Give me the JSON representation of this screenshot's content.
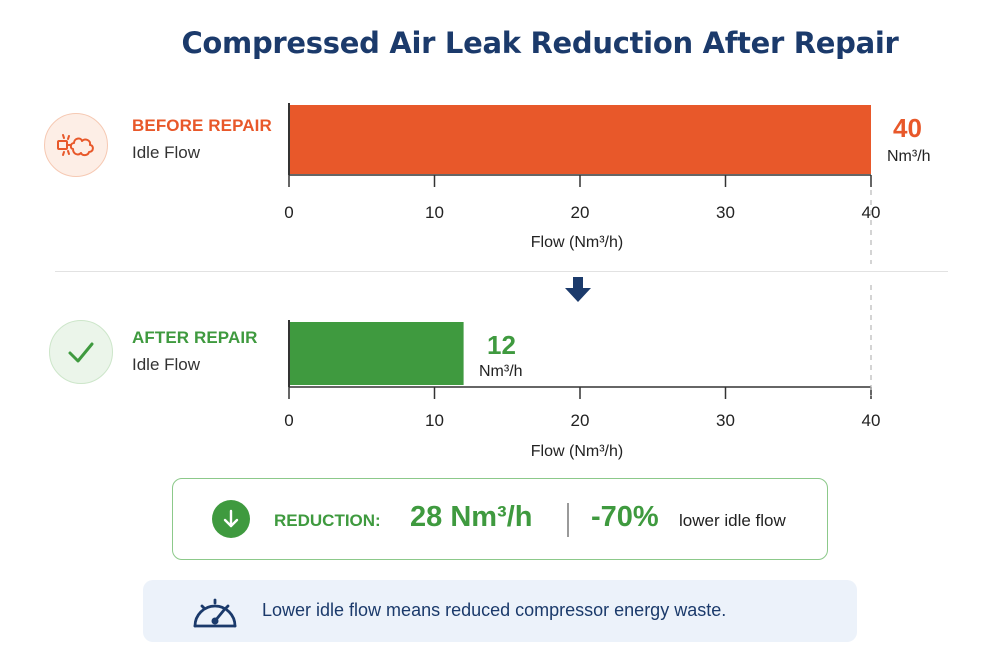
{
  "title": "Compressed Air Leak Reduction After Repair",
  "colors": {
    "before": "#e8582a",
    "after": "#3f9a3f",
    "navy": "#1b3a6b"
  },
  "chart_data": [
    {
      "type": "bar",
      "orientation": "horizontal",
      "series_label": "BEFORE REPAIR",
      "category": "Idle Flow",
      "value": 40,
      "value_label": "40",
      "unit": "Nm³/h",
      "xlabel": "Flow (Nm³/h)",
      "xlim": [
        0,
        40
      ],
      "ticks": [
        0,
        10,
        20,
        30,
        40
      ],
      "icon": "air-leak-icon",
      "color": "#e8582a"
    },
    {
      "type": "bar",
      "orientation": "horizontal",
      "series_label": "AFTER REPAIR",
      "category": "Idle Flow",
      "value": 12,
      "value_label": "12",
      "unit": "Nm³/h",
      "xlabel": "Flow (Nm³/h)",
      "xlim": [
        0,
        40
      ],
      "ticks": [
        0,
        10,
        20,
        30,
        40
      ],
      "icon": "checkmark-icon",
      "color": "#3f9a3f"
    }
  ],
  "transition_icon": "arrow-down-icon",
  "reduction": {
    "icon": "arrow-down-circle-icon",
    "label": "REDUCTION:",
    "amount": "28 Nm³/h",
    "percent": "-70%",
    "description": "lower idle flow"
  },
  "note": {
    "icon": "gauge-icon",
    "text": "Lower idle flow means reduced compressor energy waste."
  }
}
